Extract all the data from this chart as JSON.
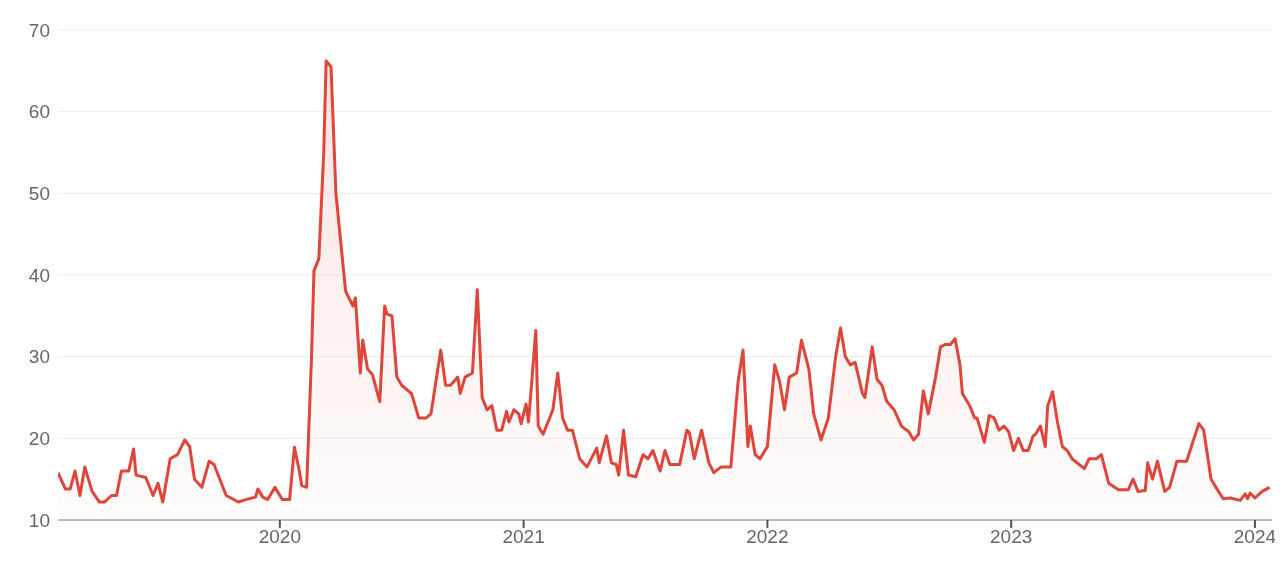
{
  "chart_data": {
    "type": "area",
    "xlim": [
      2019.09,
      2024.07
    ],
    "xticks": [
      2020,
      2021,
      2022,
      2023,
      2024
    ],
    "ylim": [
      10,
      70
    ],
    "yticks": [
      10,
      20,
      30,
      40,
      50,
      60,
      70
    ],
    "grid": "y",
    "marker": "none",
    "series": [
      {
        "color": "#e0453a",
        "x": [
          2019.09,
          2019.12,
          2019.14,
          2019.16,
          2019.18,
          2019.2,
          2019.23,
          2019.26,
          2019.28,
          2019.31,
          2019.33,
          2019.35,
          2019.38,
          2019.4,
          2019.41,
          2019.45,
          2019.48,
          2019.5,
          2019.52,
          2019.55,
          2019.58,
          2019.61,
          2019.63,
          2019.65,
          2019.68,
          2019.71,
          2019.73,
          2019.78,
          2019.83,
          2019.86,
          2019.9,
          2019.91,
          2019.93,
          2019.95,
          2019.98,
          2020.01,
          2020.04,
          2020.06,
          2020.08,
          2020.09,
          2020.11,
          2020.13,
          2020.14,
          2020.16,
          2020.18,
          2020.19,
          2020.21,
          2020.23,
          2020.25,
          2020.27,
          2020.3,
          2020.31,
          2020.33,
          2020.34,
          2020.36,
          2020.38,
          2020.41,
          2020.43,
          2020.44,
          2020.46,
          2020.48,
          2020.5,
          2020.52,
          2020.54,
          2020.57,
          2020.6,
          2020.62,
          2020.66,
          2020.68,
          2020.7,
          2020.73,
          2020.74,
          2020.76,
          2020.79,
          2020.81,
          2020.83,
          2020.85,
          2020.87,
          2020.89,
          2020.91,
          2020.93,
          2020.94,
          2020.96,
          2020.98,
          2020.99,
          2021.01,
          2021.02,
          2021.05,
          2021.06,
          2021.08,
          2021.12,
          2021.14,
          2021.16,
          2021.18,
          2021.2,
          2021.23,
          2021.26,
          2021.3,
          2021.31,
          2021.34,
          2021.36,
          2021.38,
          2021.39,
          2021.41,
          2021.43,
          2021.46,
          2021.49,
          2021.51,
          2021.53,
          2021.56,
          2021.58,
          2021.6,
          2021.64,
          2021.67,
          2021.68,
          2021.7,
          2021.73,
          2021.76,
          2021.78,
          2021.81,
          2021.85,
          2021.88,
          2021.9,
          2021.92,
          2021.93,
          2021.95,
          2021.97,
          2022.0,
          2022.03,
          2022.05,
          2022.07,
          2022.09,
          2022.12,
          2022.14,
          2022.17,
          2022.19,
          2022.22,
          2022.25,
          2022.28,
          2022.3,
          2022.32,
          2022.34,
          2022.36,
          2022.39,
          2022.4,
          2022.43,
          2022.45,
          2022.47,
          2022.49,
          2022.52,
          2022.55,
          2022.58,
          2022.6,
          2022.62,
          2022.64,
          2022.66,
          2022.69,
          2022.71,
          2022.73,
          2022.75,
          2022.77,
          2022.79,
          2022.8,
          2022.83,
          2022.85,
          2022.86,
          2022.89,
          2022.91,
          2022.93,
          2022.95,
          2022.97,
          2022.99,
          2023.01,
          2023.03,
          2023.05,
          2023.07,
          2023.09,
          2023.1,
          2023.12,
          2023.14,
          2023.15,
          2023.17,
          2023.19,
          2023.21,
          2023.23,
          2023.25,
          2023.3,
          2023.32,
          2023.35,
          2023.37,
          2023.4,
          2023.44,
          2023.48,
          2023.5,
          2023.52,
          2023.55,
          2023.56,
          2023.58,
          2023.6,
          2023.63,
          2023.65,
          2023.68,
          2023.72,
          2023.75,
          2023.77,
          2023.79,
          2023.82,
          2023.84,
          2023.87,
          2023.9,
          2023.94,
          2023.96,
          2023.97,
          2023.98,
          2024.0,
          2024.03,
          2024.06
        ],
        "values": [
          15.8,
          13.8,
          13.8,
          16,
          13,
          16.5,
          13.5,
          12.2,
          12.2,
          13,
          13,
          16,
          16,
          18.7,
          15.5,
          15.2,
          13,
          14.5,
          12.2,
          17.5,
          18,
          19.8,
          19,
          15,
          14,
          17.2,
          16.8,
          13,
          12.2,
          12.5,
          12.8,
          13.8,
          12.8,
          12.5,
          14,
          12.5,
          12.5,
          18.9,
          16,
          14.2,
          14,
          30,
          40.5,
          42,
          55,
          66.2,
          65.5,
          50,
          44,
          38,
          36.2,
          37.2,
          28,
          32,
          28.5,
          27.8,
          24.5,
          36.2,
          35.2,
          35,
          27.5,
          26.5,
          26,
          25.5,
          22.5,
          22.5,
          23,
          30.8,
          26.5,
          26.5,
          27.5,
          25.5,
          27.5,
          28,
          38.2,
          25,
          23.5,
          24,
          21,
          21,
          23.3,
          22,
          23.5,
          23,
          21.8,
          24.2,
          22,
          33.2,
          21.5,
          20.5,
          23.5,
          28,
          22.5,
          21,
          21,
          17.5,
          16.5,
          18.8,
          17,
          20.3,
          17,
          16.8,
          15.5,
          21,
          15.5,
          15.3,
          18,
          17.5,
          18.5,
          16,
          18.5,
          16.8,
          16.8,
          21,
          20.7,
          17.5,
          21,
          17,
          15.8,
          16.5,
          16.5,
          27,
          30.8,
          19,
          21.5,
          18,
          17.5,
          19,
          29,
          27,
          23.5,
          27.5,
          28,
          32,
          28.5,
          23,
          19.8,
          22.5,
          30,
          33.5,
          30,
          29,
          29.3,
          25.5,
          25,
          31.2,
          27.2,
          26.5,
          24.5,
          23.5,
          21.5,
          20.8,
          19.8,
          20.5,
          25.8,
          23,
          27.5,
          31.2,
          31.5,
          31.5,
          32.2,
          29,
          25.5,
          24,
          22.5,
          22.5,
          19.5,
          22.8,
          22.5,
          21,
          21.5,
          20.8,
          18.5,
          20,
          18.5,
          18.5,
          20.3,
          20.5,
          21.5,
          19,
          24,
          25.7,
          22,
          19,
          18.5,
          17.5,
          16.3,
          17.5,
          17.5,
          18,
          14.5,
          13.7,
          13.7,
          15,
          13.5,
          13.6,
          17,
          15,
          17.2,
          13.5,
          14,
          17.2,
          17.2,
          20,
          21.8,
          21,
          15,
          14,
          12.6,
          12.7,
          12.4,
          13.2,
          12.6,
          13.3,
          12.7,
          13.5,
          14
        ]
      }
    ]
  }
}
